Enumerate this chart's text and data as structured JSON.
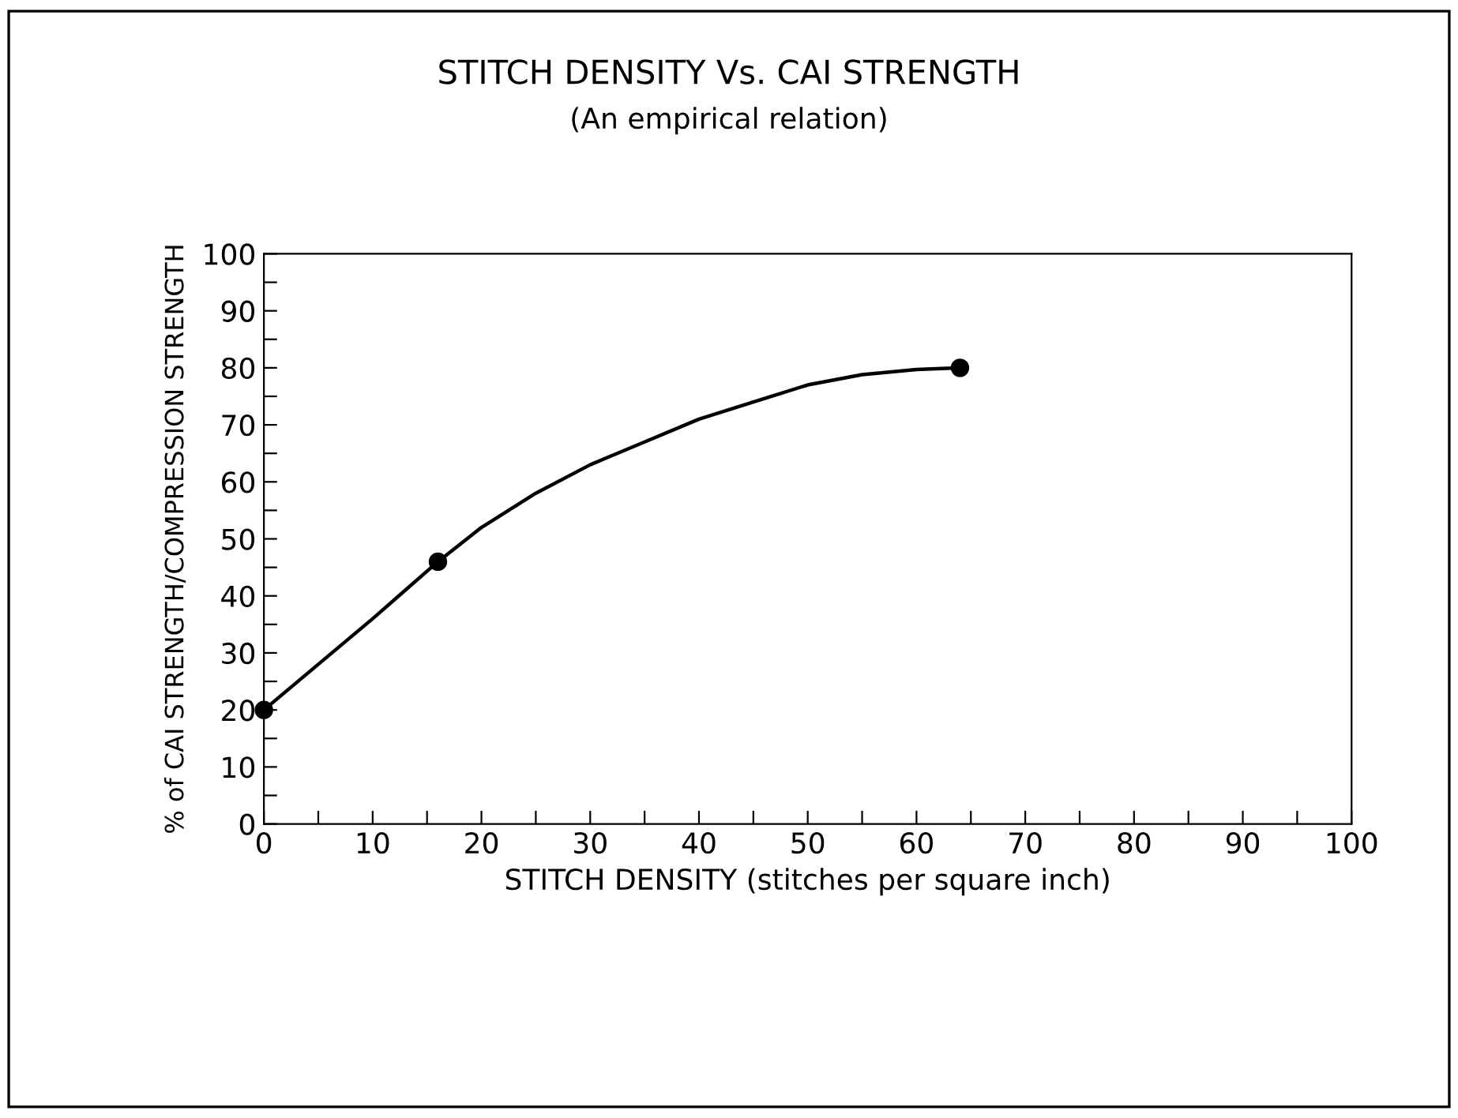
{
  "chart_data": {
    "type": "line",
    "title": "STITCH DENSITY Vs. CAI STRENGTH",
    "subtitle": "(An empirical relation)",
    "xlabel": "STITCH DENSITY (stitches per square inch)",
    "ylabel": "% of CAI STRENGTH/COMPRESSION STRENGTH",
    "xlim": [
      0,
      100
    ],
    "ylim": [
      0,
      100
    ],
    "xticks": [
      0,
      {
        "value": 5,
        "label": null
      },
      10,
      {
        "value": 15,
        "label": null
      },
      20,
      {
        "value": 25,
        "label": null
      },
      30,
      {
        "value": 35,
        "label": null
      },
      40,
      {
        "value": 45,
        "label": null
      },
      50,
      {
        "value": 55,
        "label": null
      },
      60,
      {
        "value": 65,
        "label": null
      },
      70,
      {
        "value": 75,
        "label": null
      },
      80,
      {
        "value": 85,
        "label": null
      },
      90,
      {
        "value": 95,
        "label": null
      },
      100
    ],
    "yticks": [
      0,
      {
        "value": 5,
        "label": null
      },
      10,
      {
        "value": 15,
        "label": null
      },
      20,
      {
        "value": 25,
        "label": null
      },
      30,
      {
        "value": 35,
        "label": null
      },
      40,
      {
        "value": 45,
        "label": null
      },
      50,
      {
        "value": 55,
        "label": null
      },
      60,
      {
        "value": 65,
        "label": null
      },
      70,
      {
        "value": 75,
        "label": null
      },
      80,
      {
        "value": 85,
        "label": null
      },
      90,
      {
        "value": 95,
        "label": null
      },
      100
    ],
    "grid": false,
    "legend": false,
    "series": [
      {
        "color": "#000000",
        "marker": "none",
        "line_style": "solid",
        "x": [
          0,
          5,
          10,
          16,
          20,
          25,
          30,
          35,
          40,
          45,
          50,
          55,
          60,
          64
        ],
        "values": [
          20,
          28,
          36,
          46,
          52,
          58,
          63,
          67,
          71,
          74,
          77,
          78.8,
          79.7,
          80
        ]
      },
      {
        "type": "scatter",
        "color": "#000000",
        "marker": "circle",
        "x": [
          0,
          16,
          64
        ],
        "values": [
          20,
          46,
          80
        ]
      }
    ]
  }
}
